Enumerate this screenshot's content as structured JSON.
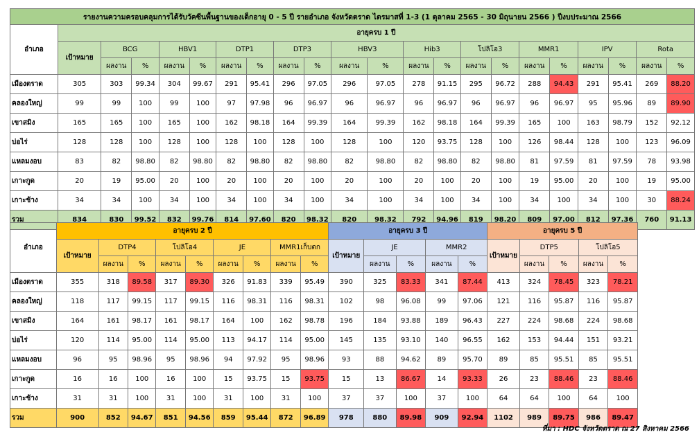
{
  "title": "รายงานความครอบคลุมการได้รับวัคซีนพื้นฐานของเด็กอายุ 0 - 5 ปี รายอำเภอ จังหวัดตราด ไตรมาสที่ 1-3 (1 ตุลาคม 2565 - 30 มิถุนายน 2566 ) ปีงบประมาณ 2566",
  "labels": {
    "district": "อำเภอ",
    "target": "เป้าหมาย",
    "result": "ผลงาน",
    "percent": "%",
    "age1": "อายุครบ 1 ปี",
    "age2": "อายุครบ 2 ปี",
    "age3": "อายุครบ 3 ปี",
    "age5": "อายุครบ 5 ปี"
  },
  "colors": {
    "highlight": "#ff5b5b",
    "green": "#c6e0b4",
    "yellow": "#ffd966",
    "blue": "#d9e1f2",
    "peach": "#fce4d6"
  },
  "table1": {
    "vaccines": [
      "BCG",
      "HBV1",
      "DTP1",
      "DTP3",
      "HBV3",
      "Hib3",
      "โปลิโอ3",
      "MMR1",
      "IPV",
      "Rota"
    ],
    "rows": [
      {
        "district": "เมืองตราด",
        "target": "305",
        "cells": [
          [
            "303",
            "99.34"
          ],
          [
            "304",
            "99.67"
          ],
          [
            "291",
            "95.41"
          ],
          [
            "296",
            "97.05"
          ],
          [
            "296",
            "97.05"
          ],
          [
            "278",
            "91.15"
          ],
          [
            "295",
            "96.72"
          ],
          [
            "288",
            "94.43"
          ],
          [
            "291",
            "95.41"
          ],
          [
            "269",
            "88.20"
          ]
        ],
        "red": [
          7,
          9
        ]
      },
      {
        "district": "คลองใหญ่",
        "target": "99",
        "cells": [
          [
            "99",
            "100"
          ],
          [
            "99",
            "100"
          ],
          [
            "97",
            "97.98"
          ],
          [
            "96",
            "96.97"
          ],
          [
            "96",
            "96.97"
          ],
          [
            "96",
            "96.97"
          ],
          [
            "96",
            "96.97"
          ],
          [
            "96",
            "96.97"
          ],
          [
            "95",
            "95.96"
          ],
          [
            "89",
            "89.90"
          ]
        ],
        "red": [
          9
        ]
      },
      {
        "district": "เขาสมิง",
        "target": "165",
        "cells": [
          [
            "165",
            "100"
          ],
          [
            "165",
            "100"
          ],
          [
            "162",
            "98.18"
          ],
          [
            "164",
            "99.39"
          ],
          [
            "164",
            "99.39"
          ],
          [
            "162",
            "98.18"
          ],
          [
            "164",
            "99.39"
          ],
          [
            "165",
            "100"
          ],
          [
            "163",
            "98.79"
          ],
          [
            "152",
            "92.12"
          ]
        ],
        "red": []
      },
      {
        "district": "บ่อไร่",
        "target": "128",
        "cells": [
          [
            "128",
            "100"
          ],
          [
            "128",
            "100"
          ],
          [
            "128",
            "100"
          ],
          [
            "128",
            "100"
          ],
          [
            "128",
            "100"
          ],
          [
            "120",
            "93.75"
          ],
          [
            "128",
            "100"
          ],
          [
            "126",
            "98.44"
          ],
          [
            "128",
            "100"
          ],
          [
            "123",
            "96.09"
          ]
        ],
        "red": []
      },
      {
        "district": "แหลมงอบ",
        "target": "83",
        "cells": [
          [
            "82",
            "98.80"
          ],
          [
            "82",
            "98.80"
          ],
          [
            "82",
            "98.80"
          ],
          [
            "82",
            "98.80"
          ],
          [
            "82",
            "98.80"
          ],
          [
            "82",
            "98.80"
          ],
          [
            "82",
            "98.80"
          ],
          [
            "81",
            "97.59"
          ],
          [
            "81",
            "97.59"
          ],
          [
            "78",
            "93.98"
          ]
        ],
        "red": []
      },
      {
        "district": "เกาะกูด",
        "target": "20",
        "cells": [
          [
            "19",
            "95.00"
          ],
          [
            "20",
            "100"
          ],
          [
            "20",
            "100"
          ],
          [
            "20",
            "100"
          ],
          [
            "20",
            "100"
          ],
          [
            "20",
            "100"
          ],
          [
            "20",
            "100"
          ],
          [
            "19",
            "95.00"
          ],
          [
            "20",
            "100"
          ],
          [
            "19",
            "95.00"
          ]
        ],
        "red": []
      },
      {
        "district": "เกาะช้าง",
        "target": "34",
        "cells": [
          [
            "34",
            "100"
          ],
          [
            "34",
            "100"
          ],
          [
            "34",
            "100"
          ],
          [
            "34",
            "100"
          ],
          [
            "34",
            "100"
          ],
          [
            "34",
            "100"
          ],
          [
            "34",
            "100"
          ],
          [
            "34",
            "100"
          ],
          [
            "34",
            "100"
          ],
          [
            "30",
            "88.24"
          ]
        ],
        "red": [
          9
        ]
      }
    ],
    "total": {
      "district": "รวม",
      "target": "834",
      "cells": [
        [
          "830",
          "99.52"
        ],
        [
          "832",
          "99.76"
        ],
        [
          "814",
          "97.60"
        ],
        [
          "820",
          "98.32"
        ],
        [
          "820",
          "98.32"
        ],
        [
          "792",
          "94.96"
        ],
        [
          "819",
          "98.20"
        ],
        [
          "809",
          "97.00"
        ],
        [
          "812",
          "97.36"
        ],
        [
          "760",
          "91.13"
        ]
      ],
      "red": []
    }
  },
  "table2": {
    "age2_vaccines": [
      "DTP4",
      "โปลิโอ4",
      "JE",
      "MMR1เก็บตก"
    ],
    "age3_vaccines": [
      "JE",
      "MMR2"
    ],
    "age5_vaccines": [
      "DTP5",
      "โปลิโอ5"
    ],
    "rows": [
      {
        "district": "เมืองตราด",
        "t2": "355",
        "a2": [
          [
            "318",
            "89.58"
          ],
          [
            "317",
            "89.30"
          ],
          [
            "326",
            "91.83"
          ],
          [
            "339",
            "95.49"
          ]
        ],
        "t3": "390",
        "a3": [
          [
            "325",
            "83.33"
          ],
          [
            "341",
            "87.44"
          ]
        ],
        "t5": "413",
        "a5": [
          [
            "324",
            "78.45"
          ],
          [
            "323",
            "78.21"
          ]
        ],
        "red2": [
          0,
          1
        ],
        "red3": [
          0,
          1
        ],
        "red5": [
          0,
          1
        ]
      },
      {
        "district": "คลองใหญ่",
        "t2": "118",
        "a2": [
          [
            "117",
            "99.15"
          ],
          [
            "117",
            "99.15"
          ],
          [
            "116",
            "98.31"
          ],
          [
            "116",
            "98.31"
          ]
        ],
        "t3": "102",
        "a3": [
          [
            "98",
            "96.08"
          ],
          [
            "99",
            "97.06"
          ]
        ],
        "t5": "121",
        "a5": [
          [
            "116",
            "95.87"
          ],
          [
            "116",
            "95.87"
          ]
        ],
        "red2": [],
        "red3": [],
        "red5": []
      },
      {
        "district": "เขาสมิง",
        "t2": "164",
        "a2": [
          [
            "161",
            "98.17"
          ],
          [
            "161",
            "98.17"
          ],
          [
            "164",
            "100"
          ],
          [
            "162",
            "98.78"
          ]
        ],
        "t3": "196",
        "a3": [
          [
            "184",
            "93.88"
          ],
          [
            "189",
            "96.43"
          ]
        ],
        "t5": "227",
        "a5": [
          [
            "224",
            "98.68"
          ],
          [
            "224",
            "98.68"
          ]
        ],
        "red2": [],
        "red3": [],
        "red5": []
      },
      {
        "district": "บ่อไร่",
        "t2": "120",
        "a2": [
          [
            "114",
            "95.00"
          ],
          [
            "114",
            "95.00"
          ],
          [
            "113",
            "94.17"
          ],
          [
            "114",
            "95.00"
          ]
        ],
        "t3": "145",
        "a3": [
          [
            "135",
            "93.10"
          ],
          [
            "140",
            "96.55"
          ]
        ],
        "t5": "162",
        "a5": [
          [
            "153",
            "94.44"
          ],
          [
            "151",
            "93.21"
          ]
        ],
        "red2": [],
        "red3": [],
        "red5": []
      },
      {
        "district": "แหลมงอบ",
        "t2": "96",
        "a2": [
          [
            "95",
            "98.96"
          ],
          [
            "95",
            "98.96"
          ],
          [
            "94",
            "97.92"
          ],
          [
            "95",
            "98.96"
          ]
        ],
        "t3": "93",
        "a3": [
          [
            "88",
            "94.62"
          ],
          [
            "89",
            "95.70"
          ]
        ],
        "t5": "89",
        "a5": [
          [
            "85",
            "95.51"
          ],
          [
            "85",
            "95.51"
          ]
        ],
        "red2": [],
        "red3": [],
        "red5": []
      },
      {
        "district": "เกาะกูด",
        "t2": "16",
        "a2": [
          [
            "16",
            "100"
          ],
          [
            "16",
            "100"
          ],
          [
            "15",
            "93.75"
          ],
          [
            "15",
            "93.75"
          ]
        ],
        "t3": "15",
        "a3": [
          [
            "13",
            "86.67"
          ],
          [
            "14",
            "93.33"
          ]
        ],
        "t5": "26",
        "a5": [
          [
            "23",
            "88.46"
          ],
          [
            "23",
            "88.46"
          ]
        ],
        "red2": [
          3
        ],
        "red3": [
          0,
          1
        ],
        "red5": [
          0,
          1
        ]
      },
      {
        "district": "เกาะช้าง",
        "t2": "31",
        "a2": [
          [
            "31",
            "100"
          ],
          [
            "31",
            "100"
          ],
          [
            "31",
            "100"
          ],
          [
            "31",
            "100"
          ]
        ],
        "t3": "37",
        "a3": [
          [
            "37",
            "100"
          ],
          [
            "37",
            "100"
          ]
        ],
        "t5": "64",
        "a5": [
          [
            "64",
            "100"
          ],
          [
            "64",
            "100"
          ]
        ],
        "red2": [],
        "red3": [],
        "red5": []
      }
    ],
    "total": {
      "district": "รวม",
      "t2": "900",
      "a2": [
        [
          "852",
          "94.67"
        ],
        [
          "851",
          "94.56"
        ],
        [
          "859",
          "95.44"
        ],
        [
          "872",
          "96.89"
        ]
      ],
      "t3": "978",
      "a3": [
        [
          "880",
          "89.98"
        ],
        [
          "909",
          "92.94"
        ]
      ],
      "t5": "1102",
      "a5": [
        [
          "989",
          "89.75"
        ],
        [
          "986",
          "89.47"
        ]
      ],
      "red2": [],
      "red3": [
        0,
        1
      ],
      "red5": [
        0,
        1
      ]
    }
  },
  "source": "ที่มา : HDC จังหวัดตราด ณ 27 สิงหาคม 2566"
}
